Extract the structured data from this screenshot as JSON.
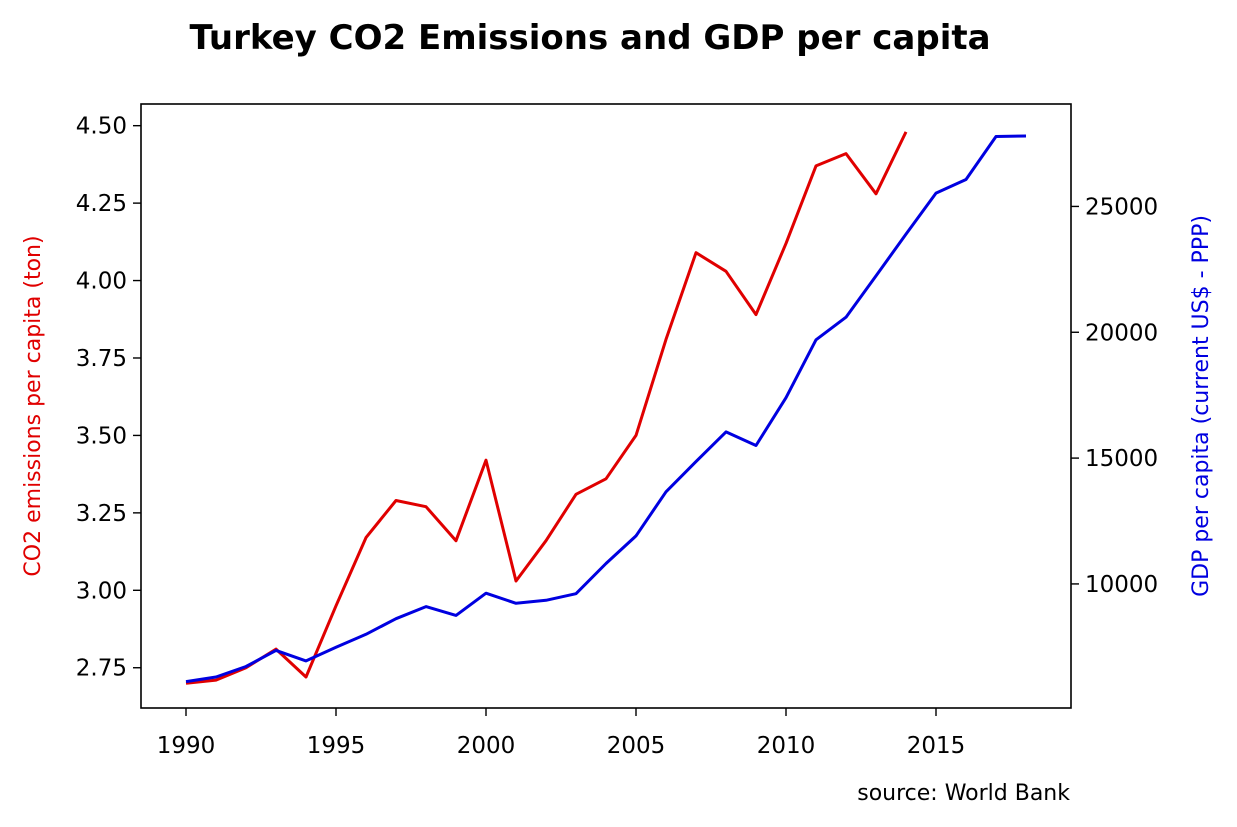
{
  "chart_data": {
    "type": "line",
    "title": "Turkey CO2 Emissions and GDP per capita",
    "xlabel": "",
    "xlim": [
      1988.5,
      2019.5
    ],
    "xticks": [
      1990,
      1995,
      2000,
      2005,
      2010,
      2015
    ],
    "annotation": "source: World Bank",
    "grid": false,
    "series": [
      {
        "axis": "left",
        "color": "#e00000",
        "ylabel": "CO2 emissions per capita (ton)",
        "ylim": [
          2.62,
          4.57
        ],
        "yticks": [
          2.75,
          3.0,
          3.25,
          3.5,
          3.75,
          4.0,
          4.25,
          4.5
        ],
        "ytick_labels": [
          "2.75",
          "3.00",
          "3.25",
          "3.50",
          "3.75",
          "4.00",
          "4.25",
          "4.50"
        ],
        "x": [
          1990,
          1991,
          1992,
          1993,
          1994,
          1995,
          1996,
          1997,
          1998,
          1999,
          2000,
          2001,
          2002,
          2003,
          2004,
          2005,
          2006,
          2007,
          2008,
          2009,
          2010,
          2011,
          2012,
          2013,
          2014
        ],
        "y": [
          2.7,
          2.71,
          2.75,
          2.81,
          2.72,
          2.95,
          3.17,
          3.29,
          3.27,
          3.16,
          3.42,
          3.03,
          3.16,
          3.31,
          3.36,
          3.5,
          3.81,
          4.09,
          4.03,
          3.89,
          4.12,
          4.37,
          4.41,
          4.28,
          4.48
        ]
      },
      {
        "axis": "right",
        "color": "#0000e0",
        "ylabel": "GDP per capita (current US$ - PPP)",
        "ylim": [
          5070,
          29070
        ],
        "yticks": [
          10000,
          15000,
          20000,
          25000
        ],
        "ytick_labels": [
          "10000",
          "15000",
          "20000",
          "25000"
        ],
        "x": [
          1990,
          1991,
          1992,
          1993,
          1994,
          1995,
          1996,
          1997,
          1998,
          1999,
          2000,
          2001,
          2002,
          2003,
          2004,
          2005,
          2006,
          2007,
          2008,
          2009,
          2010,
          2011,
          2012,
          2013,
          2014,
          2015,
          2016,
          2017,
          2018
        ],
        "y": [
          6120,
          6300,
          6720,
          7360,
          6940,
          7480,
          8000,
          8620,
          9100,
          8750,
          9630,
          9230,
          9350,
          9610,
          10810,
          11910,
          13660,
          14860,
          16040,
          15500,
          17400,
          19700,
          20600,
          22240,
          23900,
          25530,
          26070,
          27780,
          27800
        ]
      }
    ]
  }
}
